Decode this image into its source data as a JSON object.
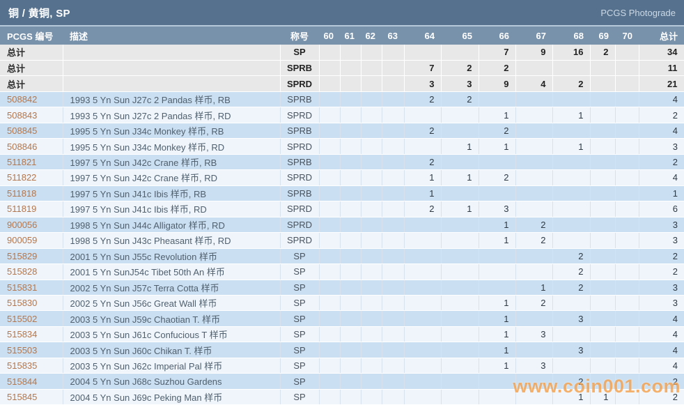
{
  "topbar": {
    "title": "铜 / 黄铜, SP",
    "photograde_label": "PCGS Photograde"
  },
  "table": {
    "headers": {
      "pcgs": "PCGS 编号",
      "description": "描述",
      "designation": "称号",
      "grades": [
        "60",
        "61",
        "62",
        "63",
        "64",
        "65",
        "66",
        "67",
        "68",
        "69",
        "70"
      ],
      "total": "总计"
    },
    "summary_rows": [
      {
        "label": "总计",
        "description": "",
        "designation": "SP",
        "grades": {
          "66": 7,
          "67": 9,
          "68": 16,
          "69": 2
        },
        "total": 34
      },
      {
        "label": "总计",
        "description": "",
        "designation": "SPRB",
        "grades": {
          "64": 7,
          "65": 2,
          "66": 2
        },
        "total": 11
      },
      {
        "label": "总计",
        "description": "",
        "designation": "SPRD",
        "grades": {
          "64": 3,
          "65": 3,
          "66": 9,
          "67": 4,
          "68": 2
        },
        "total": 21
      }
    ],
    "rows": [
      {
        "pcgs": "508842",
        "description": "1993 5 Yn Sun J27c 2 Pandas 样币, RB",
        "designation": "SPRB",
        "grades": {
          "64": 2,
          "65": 2
        },
        "total": 4
      },
      {
        "pcgs": "508843",
        "description": "1993 5 Yn Sun J27c 2 Pandas 样币, RD",
        "designation": "SPRD",
        "grades": {
          "66": 1,
          "68": 1
        },
        "total": 2
      },
      {
        "pcgs": "508845",
        "description": "1995 5 Yn Sun J34c Monkey 样币, RB",
        "designation": "SPRB",
        "grades": {
          "64": 2,
          "66": 2
        },
        "total": 4
      },
      {
        "pcgs": "508846",
        "description": "1995 5 Yn Sun J34c Monkey 样币, RD",
        "designation": "SPRD",
        "grades": {
          "65": 1,
          "66": 1,
          "68": 1
        },
        "total": 3
      },
      {
        "pcgs": "511821",
        "description": "1997 5 Yn Sun J42c Crane 样币, RB",
        "designation": "SPRB",
        "grades": {
          "64": 2
        },
        "total": 2
      },
      {
        "pcgs": "511822",
        "description": "1997 5 Yn Sun J42c Crane 样币, RD",
        "designation": "SPRD",
        "grades": {
          "64": 1,
          "65": 1,
          "66": 2
        },
        "total": 4
      },
      {
        "pcgs": "511818",
        "description": "1997 5 Yn Sun J41c Ibis 样币, RB",
        "designation": "SPRB",
        "grades": {
          "64": 1
        },
        "total": 1
      },
      {
        "pcgs": "511819",
        "description": "1997 5 Yn Sun J41c Ibis 样币, RD",
        "designation": "SPRD",
        "grades": {
          "64": 2,
          "65": 1,
          "66": 3
        },
        "total": 6
      },
      {
        "pcgs": "900056",
        "description": "1998 5 Yn Sun J44c Alligator 样币, RD",
        "designation": "SPRD",
        "grades": {
          "66": 1,
          "67": 2
        },
        "total": 3
      },
      {
        "pcgs": "900059",
        "description": "1998 5 Yn Sun J43c Pheasant 样币, RD",
        "designation": "SPRD",
        "grades": {
          "66": 1,
          "67": 2
        },
        "total": 3
      },
      {
        "pcgs": "515829",
        "description": "2001 5 Yn Sun J55c Revolution 样币",
        "designation": "SP",
        "grades": {
          "68": 2
        },
        "total": 2
      },
      {
        "pcgs": "515828",
        "description": "2001 5 Yn SunJ54c Tibet 50th An 样币",
        "designation": "SP",
        "grades": {
          "68": 2
        },
        "total": 2
      },
      {
        "pcgs": "515831",
        "description": "2002 5 Yn Sun J57c Terra Cotta 样币",
        "designation": "SP",
        "grades": {
          "67": 1,
          "68": 2
        },
        "total": 3
      },
      {
        "pcgs": "515830",
        "description": "2002 5 Yn Sun J56c Great Wall 样币",
        "designation": "SP",
        "grades": {
          "66": 1,
          "67": 2
        },
        "total": 3
      },
      {
        "pcgs": "515502",
        "description": "2003 5 Yn Sun J59c Chaotian T. 样币",
        "designation": "SP",
        "grades": {
          "66": 1,
          "68": 3
        },
        "total": 4
      },
      {
        "pcgs": "515834",
        "description": "2003 5 Yn Sun J61c Confucious T 样币",
        "designation": "SP",
        "grades": {
          "66": 1,
          "67": 3
        },
        "total": 4
      },
      {
        "pcgs": "515503",
        "description": "2003 5 Yn Sun J60c Chikan T. 样币",
        "designation": "SP",
        "grades": {
          "66": 1,
          "68": 3
        },
        "total": 4
      },
      {
        "pcgs": "515835",
        "description": "2003 5 Yn Sun J62c Imperial Pal 样币",
        "designation": "SP",
        "grades": {
          "66": 1,
          "67": 3
        },
        "total": 4
      },
      {
        "pcgs": "515844",
        "description": "2004 5 Yn Sun J68c Suzhou Gardens",
        "designation": "SP",
        "grades": {
          "68": 2
        },
        "total": 2
      },
      {
        "pcgs": "515845",
        "description": "2004 5 Yn Sun J69c Peking Man 样币",
        "designation": "SP",
        "grades": {
          "68": 1,
          "69": 1
        },
        "total": 2
      }
    ]
  },
  "watermark": "www.coin001.com",
  "colors": {
    "topbar": "#56718d",
    "header_row": "#7992ab",
    "row_blue": "#cadff1",
    "row_pale": "#eff5fb",
    "summary_gray": "#e8e8e8",
    "link": "#b5764b",
    "watermark": "#f5a04a"
  }
}
